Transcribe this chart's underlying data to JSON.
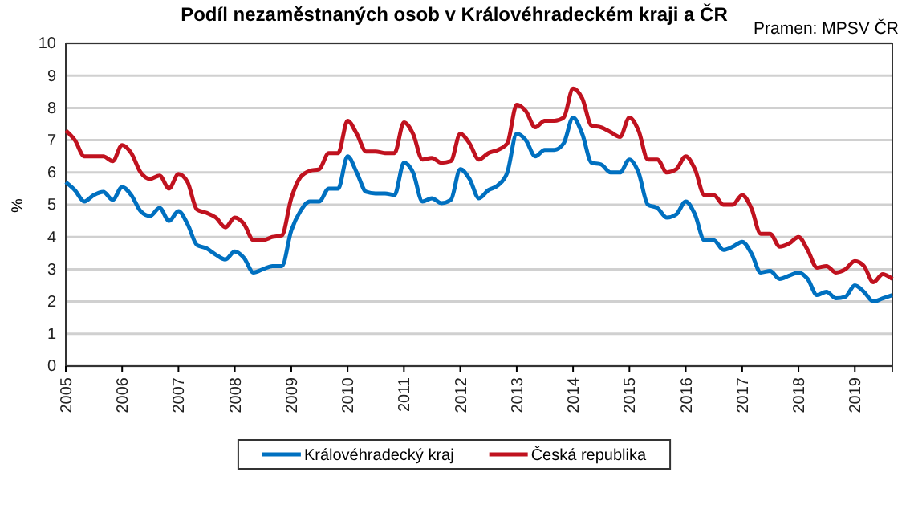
{
  "chart_data": {
    "type": "line",
    "title": "Podíl  nezaměstnaných osob v Královéhradeckém kraji a ČR",
    "annotations": [
      "Pramen: MPSV ČR"
    ],
    "ylabel": "%",
    "x": [
      "2005-01",
      "2005-03",
      "2005-05",
      "2005-07",
      "2005-09",
      "2005-11",
      "2006-01",
      "2006-03",
      "2006-05",
      "2006-07",
      "2006-09",
      "2006-11",
      "2007-01",
      "2007-03",
      "2007-05",
      "2007-07",
      "2007-09",
      "2007-11",
      "2008-01",
      "2008-03",
      "2008-05",
      "2008-07",
      "2008-09",
      "2008-11",
      "2009-01",
      "2009-03",
      "2009-05",
      "2009-07",
      "2009-09",
      "2009-11",
      "2010-01",
      "2010-03",
      "2010-05",
      "2010-07",
      "2010-09",
      "2010-11",
      "2011-01",
      "2011-03",
      "2011-05",
      "2011-07",
      "2011-09",
      "2011-11",
      "2012-01",
      "2012-03",
      "2012-05",
      "2012-07",
      "2012-09",
      "2012-11",
      "2013-01",
      "2013-03",
      "2013-05",
      "2013-07",
      "2013-09",
      "2013-11",
      "2014-01",
      "2014-03",
      "2014-05",
      "2014-07",
      "2014-09",
      "2014-11",
      "2015-01",
      "2015-03",
      "2015-05",
      "2015-07",
      "2015-09",
      "2015-11",
      "2016-01",
      "2016-03",
      "2016-05",
      "2016-07",
      "2016-09",
      "2016-11",
      "2017-01",
      "2017-03",
      "2017-05",
      "2017-07",
      "2017-09",
      "2017-11",
      "2018-01",
      "2018-03",
      "2018-05",
      "2018-07",
      "2018-09",
      "2018-11",
      "2019-01",
      "2019-03",
      "2019-05",
      "2019-07",
      "2019-09"
    ],
    "series": [
      {
        "name": "Královéhradecký kraj",
        "color": "#0070c0",
        "values": [
          5.7,
          5.45,
          5.1,
          5.3,
          5.4,
          5.15,
          5.55,
          5.3,
          4.8,
          4.65,
          4.9,
          4.5,
          4.8,
          4.4,
          3.75,
          3.65,
          3.45,
          3.3,
          3.55,
          3.35,
          2.9,
          3.0,
          3.1,
          3.1,
          4.2,
          4.8,
          5.1,
          5.1,
          5.5,
          5.5,
          6.5,
          6.0,
          5.4,
          5.35,
          5.35,
          5.3,
          6.3,
          6.0,
          5.1,
          5.2,
          5.05,
          5.15,
          6.1,
          5.8,
          5.2,
          5.45,
          5.6,
          6.0,
          7.2,
          7.0,
          6.5,
          6.7,
          6.7,
          6.9,
          7.7,
          7.2,
          6.3,
          6.25,
          6.0,
          6.0,
          6.4,
          6.0,
          5.0,
          4.9,
          4.6,
          4.7,
          5.1,
          4.7,
          3.9,
          3.9,
          3.6,
          3.7,
          3.85,
          3.5,
          2.9,
          2.95,
          2.7,
          2.8,
          2.9,
          2.7,
          2.2,
          2.3,
          2.1,
          2.15,
          2.5,
          2.3,
          2.0,
          2.1,
          2.2
        ]
      },
      {
        "name": "Česká republika",
        "color": "#c0121f",
        "values": [
          7.3,
          7.0,
          6.5,
          6.5,
          6.5,
          6.35,
          6.85,
          6.6,
          6.0,
          5.8,
          5.9,
          5.5,
          5.95,
          5.7,
          4.85,
          4.75,
          4.6,
          4.3,
          4.6,
          4.4,
          3.9,
          3.9,
          4.0,
          4.05,
          5.2,
          5.85,
          6.05,
          6.1,
          6.6,
          6.6,
          7.6,
          7.2,
          6.65,
          6.65,
          6.6,
          6.6,
          7.55,
          7.2,
          6.4,
          6.45,
          6.3,
          6.35,
          7.2,
          6.9,
          6.4,
          6.6,
          6.7,
          6.9,
          8.1,
          7.9,
          7.4,
          7.6,
          7.6,
          7.7,
          8.6,
          8.3,
          7.45,
          7.4,
          7.25,
          7.1,
          7.7,
          7.3,
          6.4,
          6.4,
          6.0,
          6.1,
          6.5,
          6.1,
          5.3,
          5.3,
          5.0,
          5.0,
          5.3,
          4.9,
          4.1,
          4.1,
          3.7,
          3.8,
          4.0,
          3.6,
          3.05,
          3.1,
          2.9,
          3.0,
          3.25,
          3.1,
          2.6,
          2.85,
          2.7
        ]
      }
    ],
    "xlim": [
      "2005-01",
      "2019-09"
    ],
    "xticks": [
      "2005",
      "2006",
      "2007",
      "2008",
      "2009",
      "2010",
      "2011",
      "2012",
      "2013",
      "2014",
      "2015",
      "2016",
      "2017",
      "2018",
      "2019"
    ],
    "ylim": [
      0,
      10
    ],
    "yticks": [
      0,
      1,
      2,
      3,
      4,
      5,
      6,
      7,
      8,
      9,
      10
    ],
    "grid": "y",
    "legend": "bottom",
    "marker": "none",
    "line_style": "solid"
  }
}
